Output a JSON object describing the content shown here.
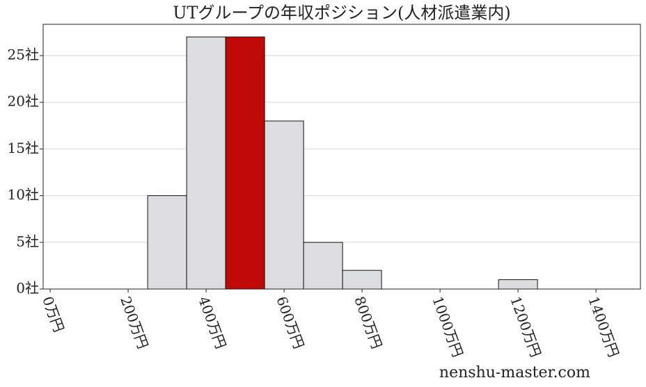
{
  "chart_data": {
    "type": "histogram",
    "title": "UTグループの年収ポジション(人材派遣業内)",
    "bins": [
      250,
      350,
      450,
      550,
      650,
      750,
      850,
      950,
      1050,
      1150,
      1250
    ],
    "values": [
      10,
      27,
      27,
      18,
      5,
      2,
      0,
      0,
      0,
      1
    ],
    "colors": [
      "#dcdde0",
      "#dcdde0",
      "#c00a07",
      "#dcdde0",
      "#dcdde0",
      "#dcdde0",
      "#dcdde0",
      "#dcdde0",
      "#dcdde0",
      "#dcdde0"
    ],
    "xlim": [
      -18,
      1514
    ],
    "xticks": [
      {
        "value": 0,
        "label": "0万円"
      },
      {
        "value": 200,
        "label": "200万円"
      },
      {
        "value": 400,
        "label": "400万円"
      },
      {
        "value": 600,
        "label": "600万円"
      },
      {
        "value": 800,
        "label": "800万円"
      },
      {
        "value": 1000,
        "label": "1000万円"
      },
      {
        "value": 1200,
        "label": "1200万円"
      },
      {
        "value": 1400,
        "label": "1400万円"
      }
    ],
    "ylim": [
      0,
      28.35
    ],
    "yticks": [
      {
        "value": 0,
        "label": "0社"
      },
      {
        "value": 5,
        "label": "5社"
      },
      {
        "value": 10,
        "label": "10社"
      },
      {
        "value": 15,
        "label": "15社"
      },
      {
        "value": 20,
        "label": "20社"
      },
      {
        "value": 25,
        "label": "25社"
      }
    ],
    "grid": true,
    "watermark": "nenshu-master.com"
  }
}
